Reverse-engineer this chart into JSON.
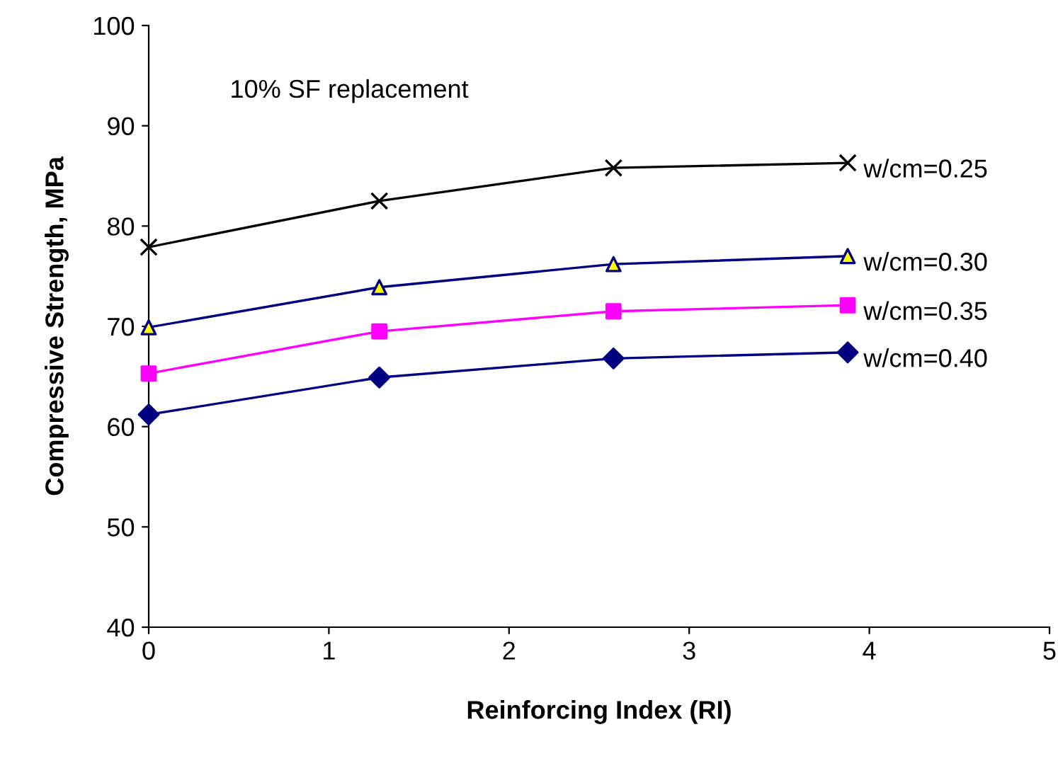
{
  "chart_data": {
    "type": "line",
    "xlabel": "Reinforcing Index (RI)",
    "ylabel": "Compressive Strength, MPa",
    "annotations": [
      "10% SF replacement"
    ],
    "xlim": [
      0,
      5
    ],
    "xticks": [
      0,
      1,
      2,
      3,
      4,
      5
    ],
    "ylim": [
      40,
      100
    ],
    "yticks": [
      40,
      50,
      60,
      70,
      80,
      90,
      100
    ],
    "grid": false,
    "legend": false,
    "line_style": "solid",
    "series": [
      {
        "name": "w/cm=0.25",
        "color": "#000000",
        "marker": "cross",
        "x": [
          0,
          1.28,
          2.58,
          3.88
        ],
        "values": [
          77.9,
          82.5,
          85.8,
          86.3
        ]
      },
      {
        "name": "w/cm=0.30",
        "color": "#000080",
        "marker": "triangle",
        "colors": [
          "#ffff00",
          "#ffff00",
          "#ffff00",
          "#ffff00"
        ],
        "x": [
          0,
          1.28,
          2.58,
          3.88
        ],
        "values": [
          69.9,
          73.9,
          76.2,
          77.0
        ]
      },
      {
        "name": "w/cm=0.35",
        "color": "#ff00ff",
        "marker": "square",
        "x": [
          0,
          1.28,
          2.58,
          3.88
        ],
        "values": [
          65.3,
          69.5,
          71.5,
          72.1
        ]
      },
      {
        "name": "w/cm=0.40",
        "color": "#000080",
        "marker": "diamond",
        "x": [
          0,
          1.28,
          2.58,
          3.88
        ],
        "values": [
          61.2,
          64.9,
          66.8,
          67.4
        ]
      }
    ]
  }
}
